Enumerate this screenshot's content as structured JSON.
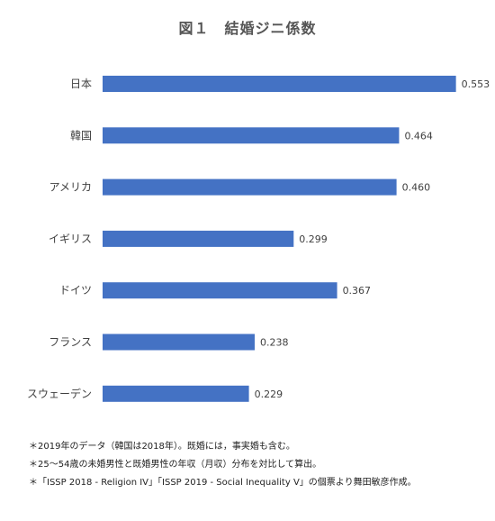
{
  "chart_data": {
    "type": "bar",
    "orientation": "horizontal",
    "title": "図１　結婚ジニ係数",
    "categories": [
      "日本",
      "韓国",
      "アメリカ",
      "イギリス",
      "ドイツ",
      "フランス",
      "スウェーデン"
    ],
    "values": [
      0.553,
      0.464,
      0.46,
      0.299,
      0.367,
      0.238,
      0.229
    ],
    "value_labels": [
      "0.553",
      "0.464",
      "0.460",
      "0.299",
      "0.367",
      "0.238",
      "0.229"
    ],
    "xlim": [
      0,
      0.6
    ],
    "bar_color": "#4472C4",
    "grid": false,
    "legend": "none"
  },
  "notes": [
    "＊2019年のデータ（韓国は2018年）。既婚には，事実婚も含む。",
    "＊25～54歳の未婚男性と既婚男性の年収（月収）分布を対比して算出。",
    "＊「ISSP 2018 - Religion IV」「ISSP 2019 - Social Inequality V」の個票より舞田敏彦作成。"
  ]
}
